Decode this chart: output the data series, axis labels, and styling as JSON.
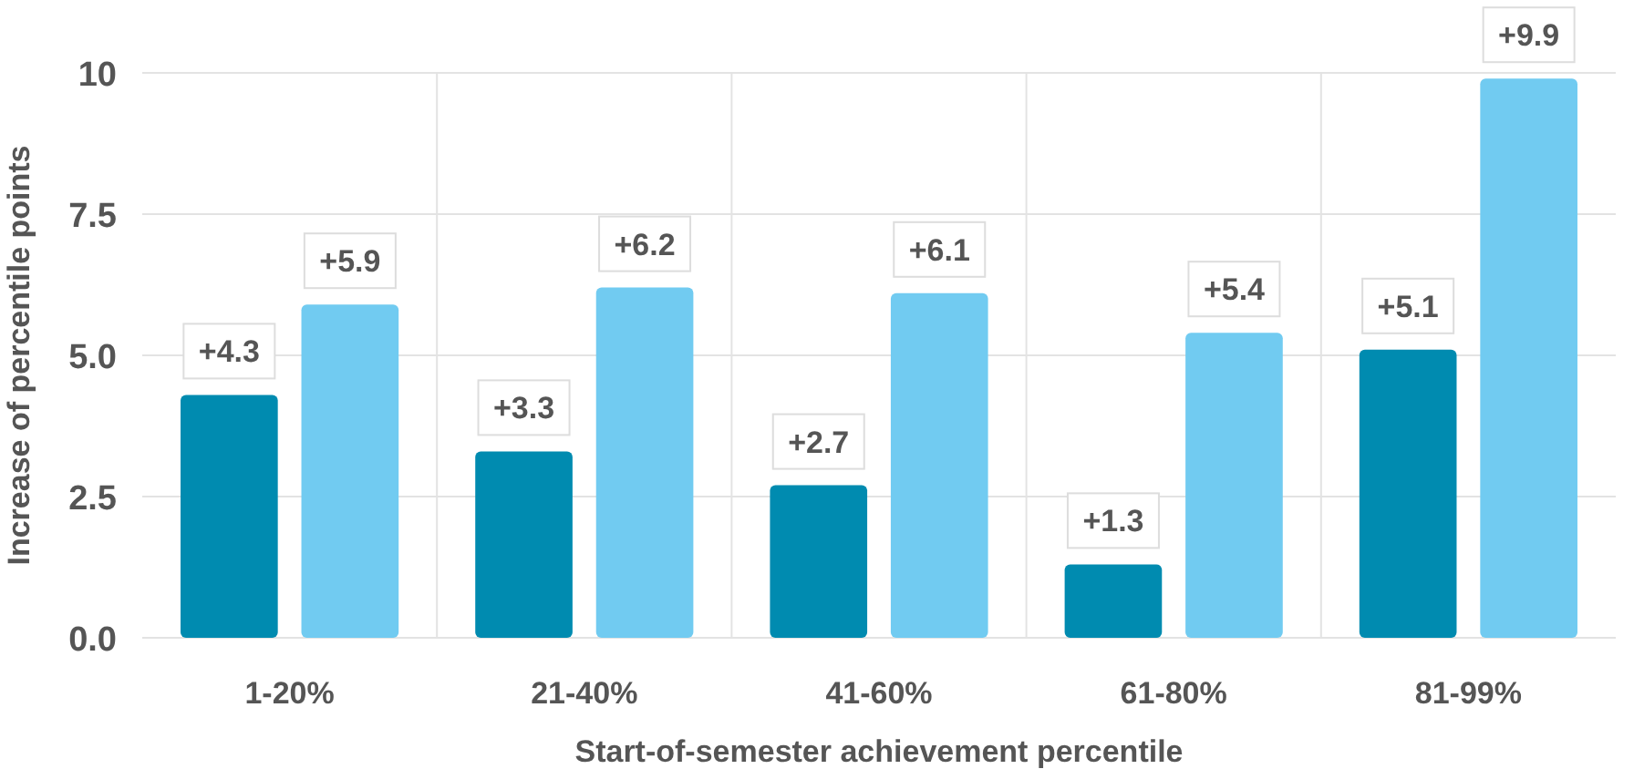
{
  "chart_data": {
    "type": "bar",
    "xlabel": "Start-of-semester achievement percentile",
    "ylabel": "Increase of percentile points",
    "categories": [
      "1-20%",
      "21-40%",
      "41-60%",
      "61-80%",
      "81-99%"
    ],
    "series": [
      {
        "color": "#008bb0",
        "values": [
          4.3,
          3.3,
          2.7,
          1.3,
          5.1
        ],
        "value_labels": [
          "+4.3",
          "+3.3",
          "+2.7",
          "+1.3",
          "+5.1"
        ]
      },
      {
        "color": "#71cbf1",
        "values": [
          5.9,
          6.2,
          6.1,
          5.4,
          9.9
        ],
        "value_labels": [
          "+5.9",
          "+6.2",
          "+6.1",
          "+5.4",
          "+9.9"
        ]
      }
    ],
    "ylim": [
      0,
      10
    ],
    "yticks": [
      {
        "value": 0,
        "label": "0.0"
      },
      {
        "value": 2.5,
        "label": "2.5"
      },
      {
        "value": 5,
        "label": "5.0"
      },
      {
        "value": 7.5,
        "label": "7.5"
      },
      {
        "value": 10,
        "label": "10"
      }
    ],
    "grid": true
  }
}
